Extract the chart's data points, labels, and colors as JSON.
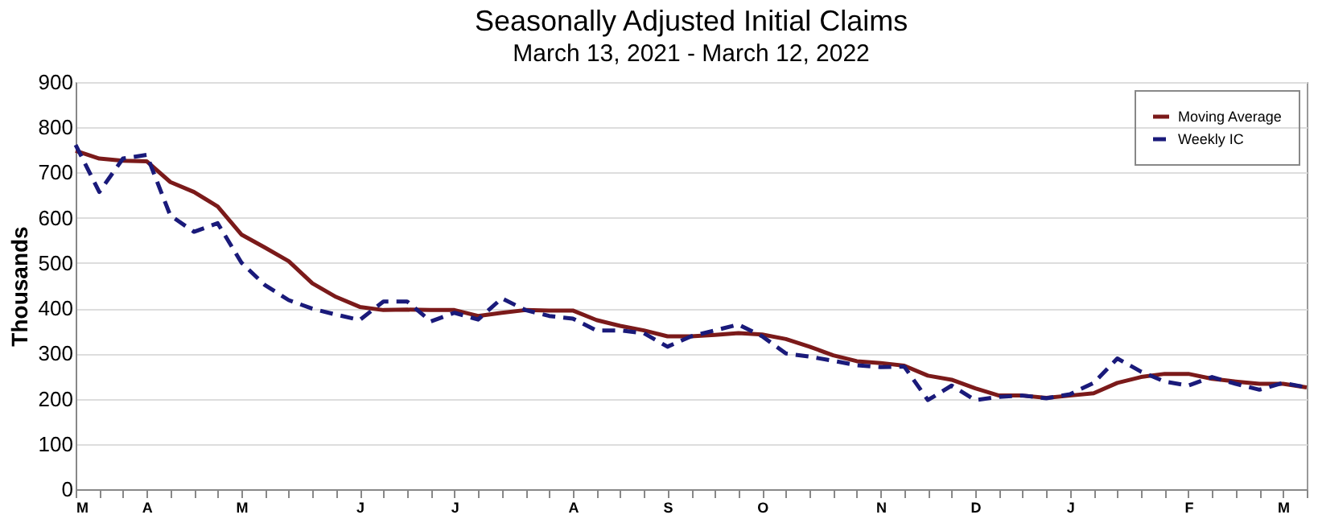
{
  "chart_data": {
    "type": "line",
    "title": "Seasonally Adjusted Initial Claims",
    "subtitle": "March 13, 2021 - March 12, 2022",
    "ylabel": "Thousands",
    "categories": [
      "M",
      null,
      null,
      "A",
      null,
      null,
      null,
      "M",
      null,
      null,
      null,
      null,
      "J",
      null,
      null,
      null,
      "J",
      null,
      null,
      null,
      null,
      "A",
      null,
      null,
      null,
      "S",
      null,
      null,
      null,
      "O",
      null,
      null,
      null,
      null,
      "N",
      null,
      null,
      null,
      "D",
      null,
      null,
      null,
      "J",
      null,
      null,
      null,
      null,
      "F",
      null,
      null,
      null,
      "M",
      null
    ],
    "series": [
      {
        "name": "Moving Average",
        "color": "#7b1a1a",
        "line_style": "solid",
        "values": [
          748,
          731,
          726,
          725,
          679,
          657,
          625,
          563,
          534,
          504,
          455,
          425,
          403,
          396,
          397,
          396,
          396,
          383,
          390,
          396,
          395,
          395,
          374,
          361,
          351,
          338,
          338,
          341,
          345,
          342,
          332,
          315,
          296,
          283,
          279,
          273,
          251,
          242,
          223,
          207,
          207,
          202,
          207,
          212,
          235,
          248,
          255,
          255,
          244,
          238,
          233,
          233,
          225
        ]
      },
      {
        "name": "Weekly IC",
        "color": "#1a1a7a",
        "line_style": "dashed",
        "values": [
          761,
          657,
          731,
          739,
          605,
          569,
          588,
          501,
          451,
          418,
          399,
          386,
          374,
          415,
          415,
          371,
          390,
          375,
          422,
          396,
          383,
          377,
          351,
          351,
          345,
          315,
          338,
          351,
          364,
          338,
          300,
          293,
          284,
          274,
          270,
          271,
          197,
          229,
          197,
          204,
          207,
          201,
          210,
          235,
          289,
          260,
          238,
          229,
          248,
          233,
          220,
          235,
          225
        ]
      }
    ],
    "ylim": [
      0,
      900
    ],
    "yticks": [
      0,
      100,
      200,
      300,
      400,
      500,
      600,
      700,
      800,
      900
    ],
    "grid": "y",
    "legend": "top right",
    "marker": "none"
  }
}
